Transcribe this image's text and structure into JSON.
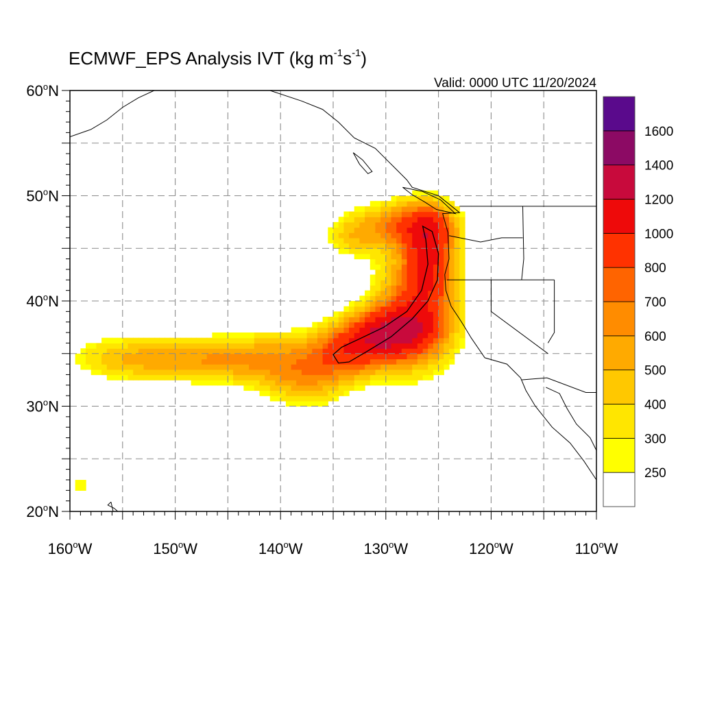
{
  "title": {
    "main": "ECMWF_EPS Analysis IVT (kg m",
    "sup1": "-1",
    "mid": "s",
    "sup2": "-1",
    "end": ")"
  },
  "valid_label": "Valid: 0000 UTC 11/20/2024",
  "map": {
    "lon_range": [
      -160,
      -110
    ],
    "lat_range": [
      20,
      60
    ],
    "grid_lons": [
      -155,
      -150,
      -145,
      -140,
      -135,
      -130,
      -125,
      -120,
      -115
    ],
    "grid_lats": [
      25,
      30,
      35,
      40,
      45,
      50,
      55
    ],
    "contour_level": 800,
    "colors": {
      "coast": "#000000",
      "grid": "#8a8a8a",
      "contour": "#000000"
    }
  },
  "axes": {
    "lat_ticks": [
      {
        "lat": 60,
        "deg": "60",
        "hem": "N"
      },
      {
        "lat": 50,
        "deg": "50",
        "hem": "N"
      },
      {
        "lat": 40,
        "deg": "40",
        "hem": "N"
      },
      {
        "lat": 30,
        "deg": "30",
        "hem": "N"
      },
      {
        "lat": 20,
        "deg": "20",
        "hem": "N"
      }
    ],
    "lon_ticks": [
      {
        "lon": -160,
        "deg": "160",
        "hem": "W"
      },
      {
        "lon": -150,
        "deg": "150",
        "hem": "W"
      },
      {
        "lon": -140,
        "deg": "140",
        "hem": "W"
      },
      {
        "lon": -130,
        "deg": "130",
        "hem": "W"
      },
      {
        "lon": -120,
        "deg": "120",
        "hem": "W"
      },
      {
        "lon": -110,
        "deg": "110",
        "hem": "W"
      }
    ]
  },
  "colorbar": {
    "levels": [
      250,
      300,
      400,
      500,
      600,
      700,
      800,
      1000,
      1200,
      1400,
      1600
    ],
    "labels": [
      "250",
      "300",
      "400",
      "500",
      "600",
      "700",
      "800",
      "1000",
      "1200",
      "1400",
      "1600"
    ],
    "colors": [
      "#ffffff",
      "#ffff00",
      "#ffe600",
      "#ffc800",
      "#ffaa00",
      "#ff8c00",
      "#ff6400",
      "#ff3200",
      "#ee0a0a",
      "#c80a3c",
      "#8c0a64",
      "#5a0a8c"
    ]
  }
}
